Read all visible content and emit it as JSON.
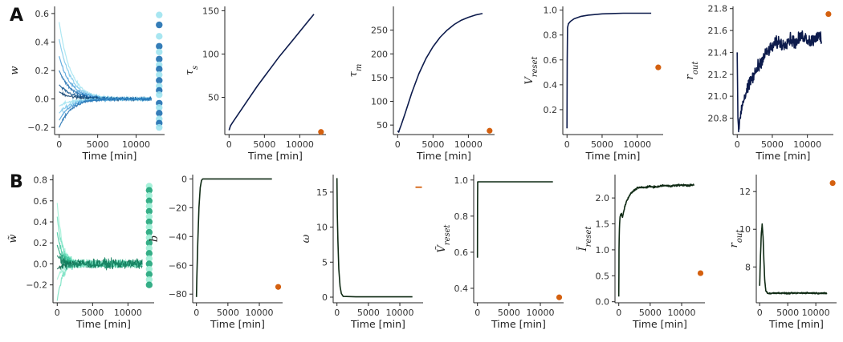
{
  "figure": {
    "panel_labels": [
      "A",
      "B"
    ],
    "colors": {
      "trace_A": "#0d1b4c",
      "trace_B": "#0f2a14",
      "marker": "#d4600f",
      "blues": [
        "#9fe3f0",
        "#7cc8ea",
        "#4a9fd8",
        "#1f6fb0",
        "#0b4f8a",
        "#063a6a"
      ],
      "greens": [
        "#9ff0d6",
        "#72e0bf",
        "#3fc79e",
        "#1fa57a",
        "#0f7d5c",
        "#0a5a43"
      ]
    }
  },
  "chart_data": [
    {
      "id": "A1",
      "type": "line",
      "panel": "A",
      "xlabel": "Time [min]",
      "ylabel": "w",
      "xlim": [
        -600,
        13700
      ],
      "ylim": [
        -0.25,
        0.65
      ],
      "xticks": [
        0,
        5000,
        10000
      ],
      "xtick_labels": [
        "0",
        "5000",
        "10000"
      ],
      "yticks": [
        -0.2,
        0.0,
        0.2,
        0.4,
        0.6
      ],
      "ytick_labels": [
        "−0.2",
        "0.0",
        "0.2",
        "0.4",
        "0.6"
      ],
      "style": "weights",
      "palette": "blues",
      "weight_start": [
        0.54,
        0.42,
        0.3,
        0.2,
        0.1,
        0.05,
        -0.05,
        -0.1,
        -0.15,
        -0.2
      ],
      "weight_final": 0.0,
      "decay_tau": 1500,
      "scatter_x": 13000,
      "scatter_y": [
        0.59,
        0.52,
        0.44,
        0.37,
        0.33,
        0.28,
        0.24,
        0.21,
        0.17,
        0.13,
        0.09,
        0.06,
        0.03,
        -0.03,
        -0.06,
        -0.1,
        -0.14,
        -0.17,
        -0.2
      ]
    },
    {
      "id": "A2",
      "type": "line",
      "panel": "A",
      "xlabel": "Time [min]",
      "ylabel": "τ_s",
      "xlim": [
        -600,
        13700
      ],
      "ylim": [
        7,
        155
      ],
      "xticks": [
        0,
        5000,
        10000
      ],
      "xtick_labels": [
        "0",
        "5000",
        "10000"
      ],
      "yticks": [
        50,
        100,
        150
      ],
      "ytick_labels": [
        "50",
        "100",
        "150"
      ],
      "series": [
        {
          "x": [
            0,
            200,
            500,
            1000,
            2000,
            3000,
            4000,
            5000,
            6000,
            7000,
            8000,
            9000,
            10000,
            11000,
            12000
          ],
          "y": [
            12,
            17,
            21,
            27,
            39,
            51,
            63,
            74,
            85,
            96,
            106,
            116,
            126,
            136,
            146
          ]
        }
      ],
      "target": {
        "x": 13000,
        "y": 10
      }
    },
    {
      "id": "A3",
      "type": "line",
      "panel": "A",
      "xlabel": "Time [min]",
      "ylabel": "τ_m",
      "xlim": [
        -600,
        13700
      ],
      "ylim": [
        30,
        300
      ],
      "xticks": [
        0,
        5000,
        10000
      ],
      "xtick_labels": [
        "0",
        "5000",
        "10000"
      ],
      "yticks": [
        50,
        100,
        150,
        200,
        250
      ],
      "ytick_labels": [
        "50",
        "100",
        "150",
        "200",
        "250"
      ],
      "series": [
        {
          "x": [
            0,
            150,
            300,
            500,
            1000,
            2000,
            3000,
            4000,
            5000,
            6000,
            7000,
            8000,
            9000,
            10000,
            11000,
            12000
          ],
          "y": [
            38,
            35,
            42,
            50,
            72,
            118,
            158,
            190,
            215,
            235,
            250,
            262,
            271,
            277,
            282,
            285
          ]
        }
      ],
      "target": {
        "x": 13000,
        "y": 38
      }
    },
    {
      "id": "A4",
      "type": "line",
      "panel": "A",
      "xlabel": "Time [min]",
      "ylabel": "V_reset",
      "xlim": [
        -600,
        13700
      ],
      "ylim": [
        0.0,
        1.03
      ],
      "xticks": [
        0,
        5000,
        10000
      ],
      "xtick_labels": [
        "0",
        "5000",
        "10000"
      ],
      "yticks": [
        0.2,
        0.4,
        0.6,
        0.8,
        1.0
      ],
      "ytick_labels": [
        "0.2",
        "0.4",
        "0.6",
        "0.8",
        "1.0"
      ],
      "series": [
        {
          "x": [
            0,
            30,
            80,
            200,
            500,
            1000,
            2000,
            3000,
            5000,
            8000,
            12000
          ],
          "y": [
            0.05,
            0.6,
            0.86,
            0.89,
            0.91,
            0.93,
            0.95,
            0.96,
            0.97,
            0.975,
            0.975
          ]
        }
      ],
      "target": {
        "x": 13000,
        "y": 0.54
      }
    },
    {
      "id": "A5",
      "type": "line",
      "panel": "A",
      "xlabel": "Time [min]",
      "ylabel": "r_out",
      "xlim": [
        -600,
        13700
      ],
      "ylim": [
        20.65,
        21.82
      ],
      "xticks": [
        0,
        5000,
        10000
      ],
      "xtick_labels": [
        "0",
        "5000",
        "10000"
      ],
      "yticks": [
        20.8,
        21.0,
        21.2,
        21.4,
        21.6,
        21.8
      ],
      "ytick_labels": [
        "20.8",
        "21.0",
        "21.2",
        "21.4",
        "21.6",
        "21.8"
      ],
      "series": [
        {
          "x": [
            0,
            100,
            200,
            300,
            500,
            800,
            1200,
            1600,
            2000,
            2500,
            3000,
            3500,
            4000,
            4500,
            5000,
            5500,
            6000,
            6500,
            7000,
            7500,
            8000,
            8500,
            9000,
            9500,
            10000,
            10500,
            11000,
            11500,
            12000
          ],
          "y": [
            21.4,
            20.8,
            20.7,
            20.75,
            20.85,
            20.95,
            21.02,
            21.08,
            21.15,
            21.2,
            21.28,
            21.33,
            21.38,
            21.42,
            21.45,
            21.48,
            21.5,
            21.46,
            21.5,
            21.52,
            21.5,
            21.49,
            21.54,
            21.55,
            21.52,
            21.5,
            21.53,
            21.56,
            21.5
          ]
        }
      ],
      "noise": 0.05,
      "target": {
        "x": 13000,
        "y": 21.75
      }
    },
    {
      "id": "B1",
      "type": "line",
      "panel": "B",
      "xlabel": "Time [min]",
      "ylabel": "w̃",
      "xlim": [
        -600,
        13700
      ],
      "ylim": [
        -0.37,
        0.85
      ],
      "xticks": [
        0,
        5000,
        10000
      ],
      "xtick_labels": [
        "0",
        "5000",
        "10000"
      ],
      "yticks": [
        -0.2,
        0.0,
        0.2,
        0.4,
        0.6,
        0.8
      ],
      "ytick_labels": [
        "−0.2",
        "0.0",
        "0.2",
        "0.4",
        "0.6",
        "0.8"
      ],
      "style": "weights",
      "palette": "greens",
      "weight_start": [
        0.58,
        0.45,
        0.3,
        0.18,
        0.08,
        -0.05,
        -0.15,
        -0.35
      ],
      "weight_final": 0.0,
      "decay_tau": 700,
      "scatter_x": 13000,
      "scatter_y": [
        0.74,
        0.7,
        0.65,
        0.6,
        0.55,
        0.5,
        0.45,
        0.4,
        0.35,
        0.3,
        0.25,
        0.2,
        0.15,
        0.1,
        0.05,
        0.0,
        -0.05,
        -0.1,
        -0.15,
        -0.2
      ]
    },
    {
      "id": "B2",
      "type": "line",
      "panel": "B",
      "xlabel": "Time [min]",
      "ylabel": "b",
      "xlim": [
        -600,
        13700
      ],
      "ylim": [
        -86,
        3
      ],
      "xticks": [
        0,
        5000,
        10000
      ],
      "xtick_labels": [
        "0",
        "5000",
        "10000"
      ],
      "yticks": [
        -80,
        -60,
        -40,
        -20,
        0
      ],
      "ytick_labels": [
        "−80",
        "−60",
        "−40",
        "−20",
        "0"
      ],
      "series": [
        {
          "x": [
            0,
            50,
            200,
            400,
            600,
            800,
            1000,
            3000,
            12000
          ],
          "y": [
            -82,
            -70,
            -45,
            -20,
            -6,
            -1,
            0,
            0,
            0
          ]
        }
      ],
      "target": {
        "x": 13000,
        "y": -75
      }
    },
    {
      "id": "B3",
      "type": "line",
      "panel": "B",
      "xlabel": "Time [min]",
      "ylabel": "ω",
      "xlim": [
        -600,
        13700
      ],
      "ylim": [
        -0.8,
        17.5
      ],
      "xticks": [
        0,
        5000,
        10000
      ],
      "xtick_labels": [
        "0",
        "5000",
        "10000"
      ],
      "yticks": [
        0,
        5,
        10,
        15
      ],
      "ytick_labels": [
        "0",
        "5",
        "10",
        "15"
      ],
      "series": [
        {
          "x": [
            0,
            50,
            150,
            300,
            500,
            700,
            1000,
            3000,
            12000
          ],
          "y": [
            17,
            12,
            8,
            4,
            1.5,
            0.5,
            0.1,
            0.05,
            0.05
          ]
        }
      ],
      "target": {
        "x": 13000,
        "y": 15.7,
        "shape": "dash"
      }
    },
    {
      "id": "B4",
      "type": "line",
      "panel": "B",
      "xlabel": "Time [min]",
      "ylabel": "Ṽ_reset",
      "xlim": [
        -600,
        13700
      ],
      "ylim": [
        0.32,
        1.03
      ],
      "xticks": [
        0,
        5000,
        10000
      ],
      "xtick_labels": [
        "0",
        "5000",
        "10000"
      ],
      "yticks": [
        0.4,
        0.6,
        0.8,
        1.0
      ],
      "ytick_labels": [
        "0.4",
        "0.6",
        "0.8",
        "1.0"
      ],
      "series": [
        {
          "x": [
            0,
            10,
            40,
            100,
            400,
            2000,
            12000
          ],
          "y": [
            0.57,
            0.85,
            0.99,
            0.99,
            0.99,
            0.99,
            0.99
          ]
        }
      ],
      "target": {
        "x": 13000,
        "y": 0.35
      }
    },
    {
      "id": "B5",
      "type": "line",
      "panel": "B",
      "xlabel": "Time [min]",
      "ylabel": "Ĩ_reset",
      "xlim": [
        -600,
        13700
      ],
      "ylim": [
        -0.02,
        2.45
      ],
      "xticks": [
        0,
        5000,
        10000
      ],
      "xtick_labels": [
        "0",
        "5000",
        "10000"
      ],
      "yticks": [
        0.0,
        0.5,
        1.0,
        1.5,
        2.0
      ],
      "ytick_labels": [
        "0.0",
        "0.5",
        "1.0",
        "1.5",
        "2.0"
      ],
      "series": [
        {
          "x": [
            0,
            40,
            100,
            200,
            400,
            600,
            800,
            1000,
            1300,
            1600,
            2000,
            2500,
            3000,
            4000,
            5000,
            6000,
            7000,
            8000,
            9000,
            10000,
            11000,
            12000
          ],
          "y": [
            0.1,
            1.0,
            1.4,
            1.65,
            1.7,
            1.62,
            1.75,
            1.85,
            1.95,
            2.02,
            2.1,
            2.15,
            2.2,
            2.2,
            2.22,
            2.21,
            2.24,
            2.23,
            2.24,
            2.25,
            2.24,
            2.25
          ]
        }
      ],
      "noise": 0.015,
      "target": {
        "x": 13000,
        "y": 0.55
      }
    },
    {
      "id": "B6",
      "type": "line",
      "panel": "B",
      "xlabel": "Time [min]",
      "ylabel": "r_out",
      "xlim": [
        -600,
        13700
      ],
      "ylim": [
        6.1,
        12.9
      ],
      "xticks": [
        0,
        5000,
        10000
      ],
      "xtick_labels": [
        "0",
        "5000",
        "10000"
      ],
      "yticks": [
        8,
        10,
        12
      ],
      "ytick_labels": [
        "8",
        "10",
        "12"
      ],
      "series": [
        {
          "x": [
            0,
            150,
            300,
            450,
            600,
            750,
            900,
            1100,
            1400,
            2000,
            3000,
            5000,
            8000,
            12000
          ],
          "y": [
            7.0,
            8.6,
            9.8,
            10.25,
            9.6,
            8.4,
            7.3,
            6.75,
            6.6,
            6.6,
            6.62,
            6.6,
            6.62,
            6.6
          ]
        }
      ],
      "noise": 0.03,
      "target": {
        "x": 13000,
        "y": 12.45
      }
    }
  ]
}
